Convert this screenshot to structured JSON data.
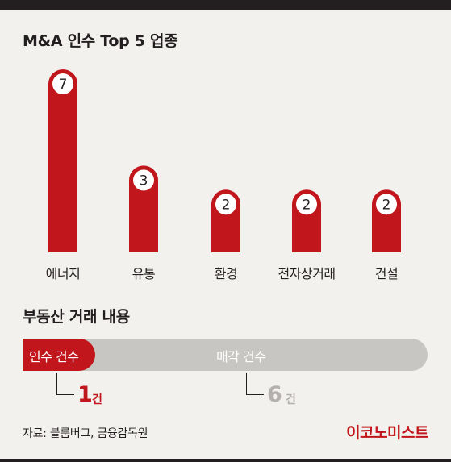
{
  "title": "M&A 인수 Top 5 업종",
  "chart_data": {
    "type": "bar",
    "title": "M&A 인수 Top 5 업종",
    "categories": [
      "에너지",
      "유통",
      "환경",
      "전자상거래",
      "건설"
    ],
    "values": [
      7,
      3,
      2,
      2,
      2
    ],
    "ylim": [
      0,
      7
    ],
    "grid": false,
    "bar_color": "#c1161c"
  },
  "deals": {
    "title": "부동산 거래 내용",
    "acquisition_label": "인수 건수",
    "sale_label": "매각 건수",
    "acquisition_count": "1",
    "sale_count": "6",
    "unit": "건",
    "acquisition_value": 1,
    "sale_value": 6,
    "acquisition_color": "#c1161c",
    "sale_color": "#c8c6c3"
  },
  "source": "자료: 블룸버그, 금융감독원",
  "logo": "이코노미스트"
}
